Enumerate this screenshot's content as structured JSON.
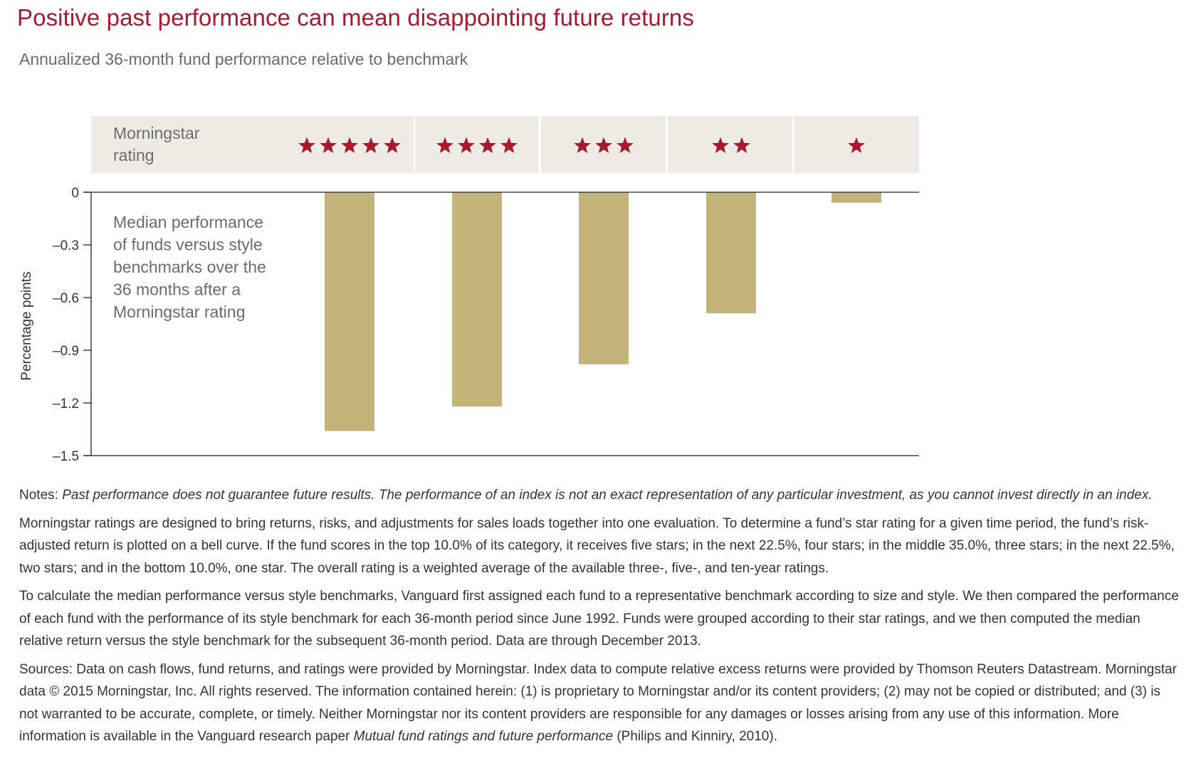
{
  "title": "Positive past performance can mean disappointing future returns",
  "subtitle": "Annualized 36-month fund performance relative to benchmark",
  "chart_data": {
    "type": "bar",
    "categories": [
      "5 stars",
      "4 stars",
      "3 stars",
      "2 stars",
      "1 star"
    ],
    "stars": [
      5,
      4,
      3,
      2,
      1
    ],
    "values": [
      -1.36,
      -1.22,
      -0.98,
      -0.69,
      -0.06
    ],
    "ylabel": "Percentage points",
    "ylim": [
      -1.5,
      0
    ],
    "yticks": [
      0,
      -0.3,
      -0.6,
      -0.9,
      -1.2,
      -1.5
    ],
    "ytick_labels": [
      "0",
      "–0.3",
      "–0.6",
      "–0.9",
      "–1.2",
      "–1.5"
    ],
    "rating_header": [
      "Morningstar",
      "rating"
    ],
    "annotation": [
      "Median performance",
      "of funds versus style",
      "benchmarks over the",
      "36 months after a",
      "Morningstar rating"
    ],
    "colors": {
      "bar": "#c3b47c",
      "star": "#a6192e",
      "header_bg": "#efebe4",
      "axis": "#222222"
    },
    "grid": false
  },
  "notes": {
    "label": "Notes: ",
    "italic": "Past performance does not guarantee future results. The performance of an index is not an exact representation of any particular investment, as you cannot invest directly in an index.",
    "p1": "Morningstar ratings are designed to bring returns, risks, and adjustments for sales loads together into one evaluation. To determine a fund’s star rating for a given time period, the fund’s risk-adjusted return is plotted on a bell curve. If the fund scores in the top 10.0% of its category, it receives five stars; in the next 22.5%, four stars; in the middle 35.0%, three stars; in the next 22.5%, two stars; and in the bottom 10.0%, one star. The overall rating is a weighted average of the available three-, five-, and ten-year ratings.",
    "p2": "To calculate the median performance versus style benchmarks, Vanguard first assigned each fund to a representative benchmark according to size and style. We then compared the performance of each fund with the performance of its style benchmark for each 36-month period since June 1992. Funds were grouped according to their star ratings, and we then computed the median relative return versus the style benchmark for the subsequent 36-month period. Data are through December 2013.",
    "sources_text": "Sources: Data on cash flows, fund returns, and ratings were provided by Morningstar. Index data to compute relative excess returns were provided by Thomson Reuters Datastream. Morningstar data © 2015 Morningstar, Inc. All rights reserved. The information contained herein: (1) is proprietary to Morningstar and/or its content providers; (2) may not be copied or distributed; and (3) is not warranted to be accurate, complete, or timely. Neither Morningstar nor its content providers are responsible for any damages or losses arising from any use of this information. More information is available in the Vanguard research paper ",
    "sources_italic": "Mutual fund ratings and future performance",
    "sources_end": " (Philips and Kinniry, 2010)."
  }
}
